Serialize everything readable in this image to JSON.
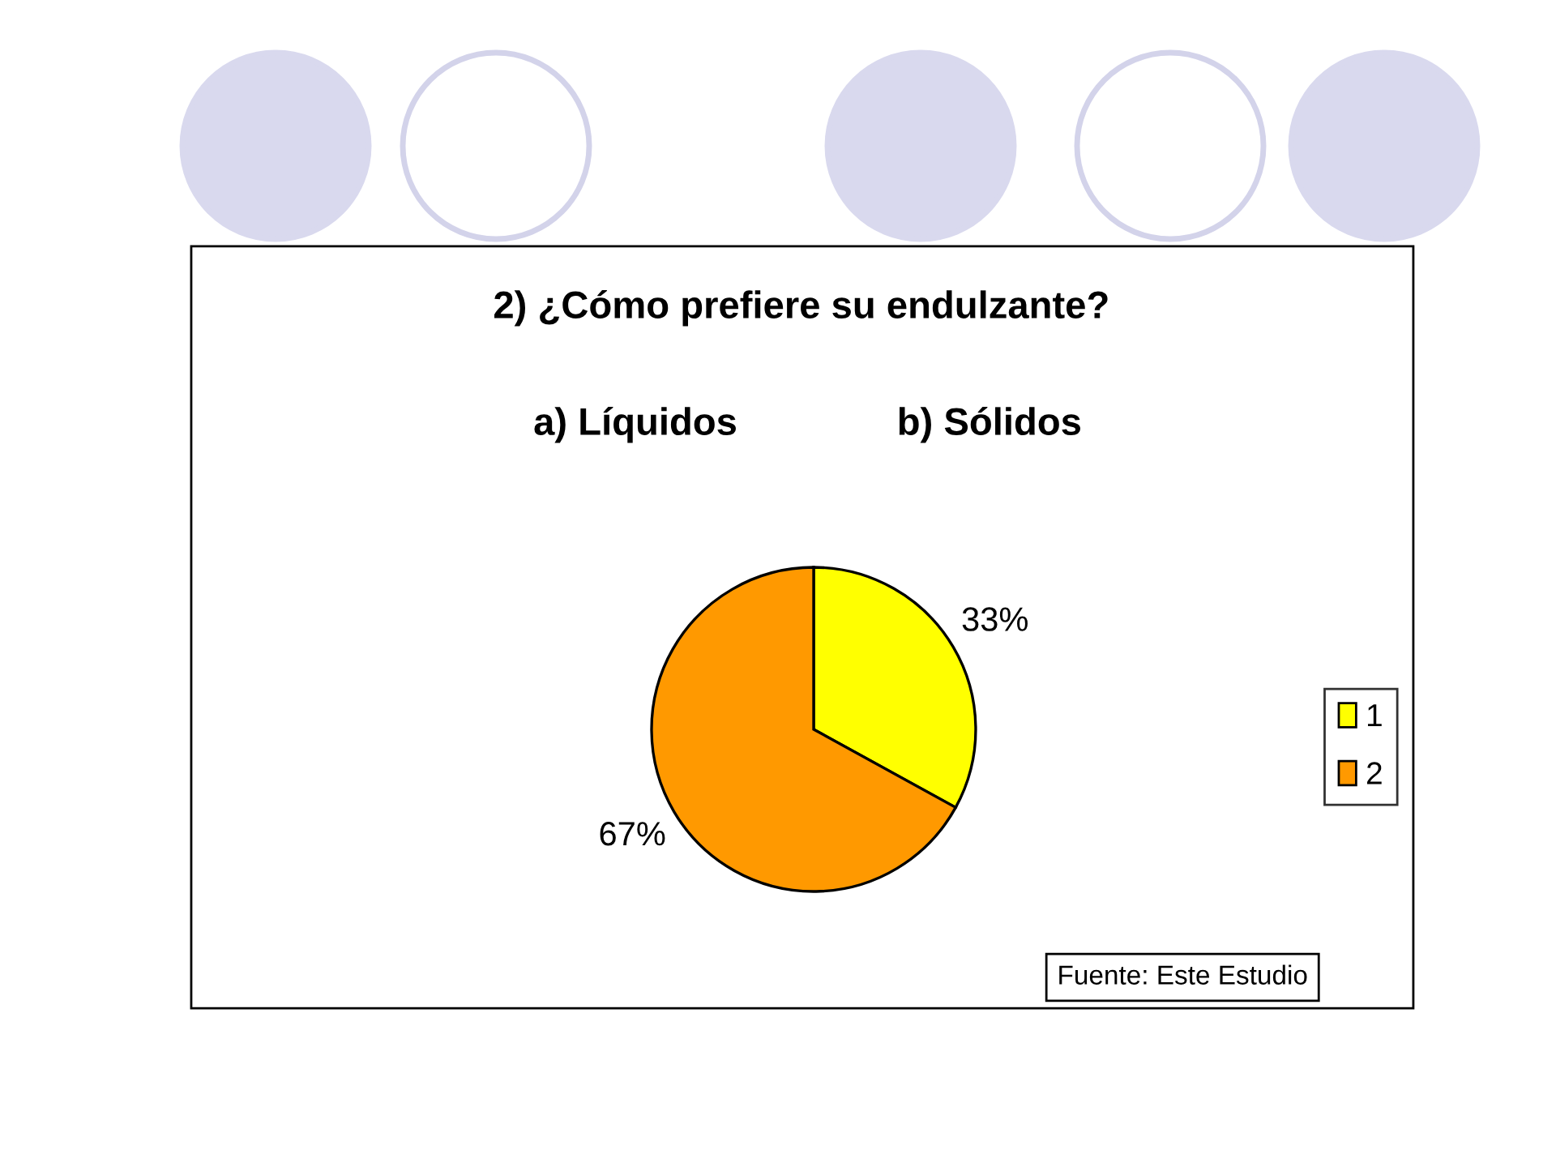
{
  "chart_data": {
    "type": "pie",
    "title": "2) ¿Cómo prefiere su endulzante?",
    "subtitle": "a) Líquidos               b) Sólidos",
    "categories": [
      "1",
      "2"
    ],
    "values": [
      33,
      67
    ],
    "colors": [
      "#ffff00",
      "#ff9900"
    ],
    "value_labels": [
      "33%",
      "67%"
    ],
    "legend": "right",
    "annotations": [
      "Fuente: Este Estudio"
    ]
  }
}
